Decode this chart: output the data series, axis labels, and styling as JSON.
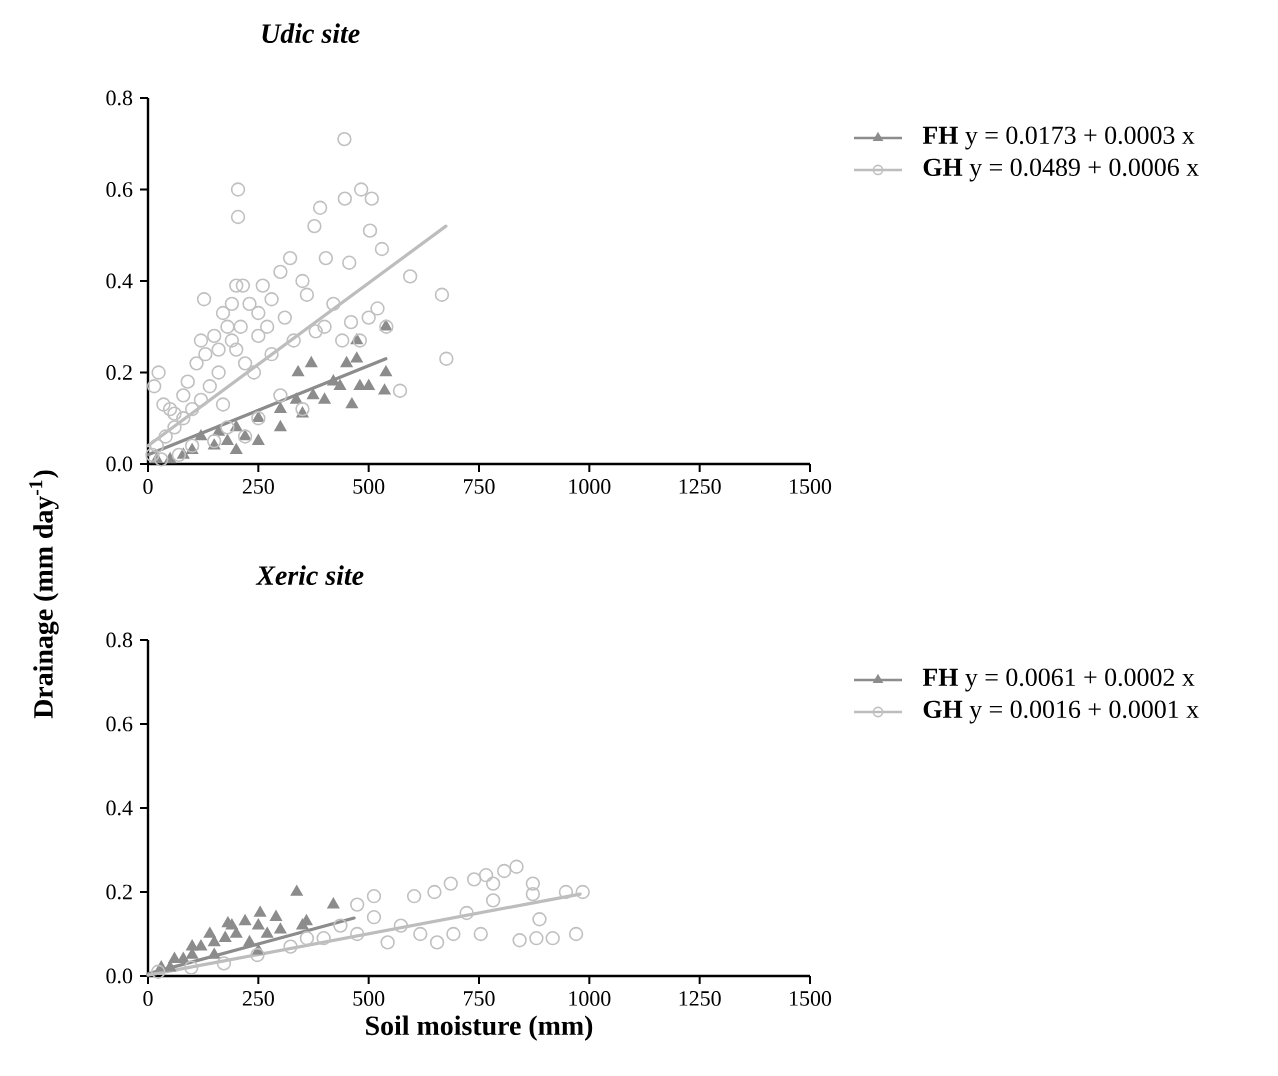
{
  "chart_data": [
    {
      "type": "scatter",
      "title": "Udic site",
      "ylabel": "Drainage (mm day$^{-1}$)",
      "legend": "right",
      "xlim": [
        0,
        1500
      ],
      "xticks": [
        0,
        250,
        500,
        750,
        1000,
        1250,
        1500
      ],
      "ylim": [
        0,
        0.8
      ],
      "yticks": [
        {
          "value": 0,
          "label": "0.0"
        },
        {
          "value": 0.2,
          "label": "0.2"
        },
        {
          "value": 0.4,
          "label": "0.4"
        },
        {
          "value": 0.6,
          "label": "0.6"
        },
        {
          "value": 0.8,
          "label": "0.8"
        }
      ],
      "series": [
        {
          "name": "**FH**    y = 0.0173 + 0.0003 x",
          "marker": "triangle",
          "color": "#8c8c8c",
          "x": [
            473,
            473,
            539,
            539,
            536,
            462,
            435,
            374,
            336,
            480,
            200,
            220,
            180,
            150,
            250,
            100,
            50,
            300,
            350,
            400,
            420,
            300,
            250,
            120,
            80,
            20,
            450,
            500,
            200,
            160,
            370,
            340
          ],
          "values": [
            0.27,
            0.23,
            0.3,
            0.2,
            0.16,
            0.13,
            0.17,
            0.15,
            0.14,
            0.17,
            0.08,
            0.06,
            0.05,
            0.04,
            0.1,
            0.03,
            0.01,
            0.08,
            0.11,
            0.14,
            0.18,
            0.12,
            0.05,
            0.06,
            0.02,
            0.01,
            0.22,
            0.17,
            0.03,
            0.07,
            0.22,
            0.2
          ]
        },
        {
          "name": "**GH**    y = 0.0489 + 0.0006 x",
          "marker": "circle",
          "color": "#c0c0c0",
          "x": [
            445,
            204,
            204,
            483,
            507,
            446,
            390,
            377,
            503,
            530,
            594,
            666,
            676,
            571,
            127,
            24,
            14,
            403,
            456,
            322,
            300,
            260,
            200,
            215,
            170,
            150,
            180,
            230,
            250,
            280,
            350,
            360,
            420,
            460,
            500,
            540,
            250,
            200,
            220,
            160,
            140,
            120,
            100,
            80,
            60,
            40,
            20,
            10,
            50,
            90,
            110,
            130,
            190,
            240,
            280,
            330,
            380,
            300,
            350,
            250,
            180,
            150,
            100,
            70,
            30,
            400,
            440,
            480,
            520,
            270,
            310,
            210,
            190,
            160,
            120,
            80,
            220,
            170,
            60,
            35
          ],
          "values": [
            0.71,
            0.6,
            0.54,
            0.6,
            0.58,
            0.58,
            0.56,
            0.52,
            0.51,
            0.47,
            0.41,
            0.37,
            0.23,
            0.16,
            0.36,
            0.2,
            0.17,
            0.45,
            0.44,
            0.45,
            0.42,
            0.39,
            0.39,
            0.39,
            0.33,
            0.28,
            0.3,
            0.35,
            0.33,
            0.36,
            0.4,
            0.37,
            0.35,
            0.31,
            0.32,
            0.3,
            0.28,
            0.25,
            0.22,
            0.2,
            0.17,
            0.14,
            0.12,
            0.1,
            0.08,
            0.06,
            0.04,
            0.02,
            0.12,
            0.18,
            0.22,
            0.24,
            0.27,
            0.2,
            0.24,
            0.27,
            0.29,
            0.15,
            0.12,
            0.1,
            0.08,
            0.05,
            0.04,
            0.02,
            0.01,
            0.3,
            0.27,
            0.27,
            0.34,
            0.3,
            0.32,
            0.3,
            0.35,
            0.25,
            0.27,
            0.15,
            0.06,
            0.13,
            0.11,
            0.13
          ]
        },
        {
          "type": "line",
          "color": "#8c8c8c",
          "x": [
            0,
            539
          ],
          "values": [
            0.02,
            0.23
          ]
        },
        {
          "type": "line",
          "color": "#bdbdbd",
          "x": [
            0,
            675
          ],
          "values": [
            0.04,
            0.52
          ]
        }
      ]
    },
    {
      "type": "scatter",
      "title": "Xeric site",
      "xlabel": "Soil moisture (mm)",
      "legend": "right",
      "xlim": [
        0,
        1500
      ],
      "xticks": [
        0,
        250,
        500,
        750,
        1000,
        1250,
        1500
      ],
      "ylim": [
        0,
        0.8
      ],
      "yticks": [
        {
          "value": 0,
          "label": "0.0"
        },
        {
          "value": 0.2,
          "label": "0.2"
        },
        {
          "value": 0.4,
          "label": "0.4"
        },
        {
          "value": 0.6,
          "label": "0.6"
        },
        {
          "value": 0.8,
          "label": "0.8"
        }
      ],
      "series": [
        {
          "name": "**FH**    y = 0.0061 + 0.0002 x",
          "marker": "triangle",
          "color": "#8c8c8c",
          "x": [
            337,
            420,
            254,
            181,
            359,
            290,
            50,
            100,
            150,
            200,
            250,
            300,
            120,
            80,
            30,
            175,
            230,
            270,
            220,
            140,
            190,
            100,
            60,
            350,
            250,
            150
          ],
          "values": [
            0.2,
            0.17,
            0.15,
            0.125,
            0.13,
            0.14,
            0.02,
            0.05,
            0.08,
            0.1,
            0.12,
            0.11,
            0.07,
            0.04,
            0.02,
            0.09,
            0.08,
            0.1,
            0.13,
            0.1,
            0.12,
            0.07,
            0.04,
            0.12,
            0.06,
            0.05
          ]
        },
        {
          "name": "**GH**    y = 0.0016 + 0.0001 x",
          "marker": "circle",
          "color": "#c0c0c0",
          "x": [
            835,
            807,
            766,
            739,
            686,
            649,
            603,
            872,
            947,
            985,
            887,
            880,
            917,
            970,
            842,
            782,
            722,
            692,
            655,
            512,
            474,
            573,
            543,
            474,
            398,
            323,
            248,
            172,
            98,
            23,
            617,
            754,
            512,
            436,
            360,
            872,
            782
          ],
          "values": [
            0.26,
            0.25,
            0.24,
            0.23,
            0.22,
            0.2,
            0.19,
            0.195,
            0.2,
            0.2,
            0.135,
            0.09,
            0.09,
            0.1,
            0.085,
            0.18,
            0.15,
            0.1,
            0.08,
            0.19,
            0.17,
            0.12,
            0.08,
            0.1,
            0.09,
            0.07,
            0.05,
            0.03,
            0.02,
            0.01,
            0.1,
            0.1,
            0.14,
            0.12,
            0.09,
            0.22,
            0.22
          ]
        },
        {
          "type": "line",
          "color": "#8c8c8c",
          "x": [
            0,
            467
          ],
          "values": [
            0.005,
            0.138
          ]
        },
        {
          "type": "line",
          "color": "#bdbdbd",
          "x": [
            0,
            979
          ],
          "values": [
            0.002,
            0.195
          ]
        }
      ]
    }
  ]
}
